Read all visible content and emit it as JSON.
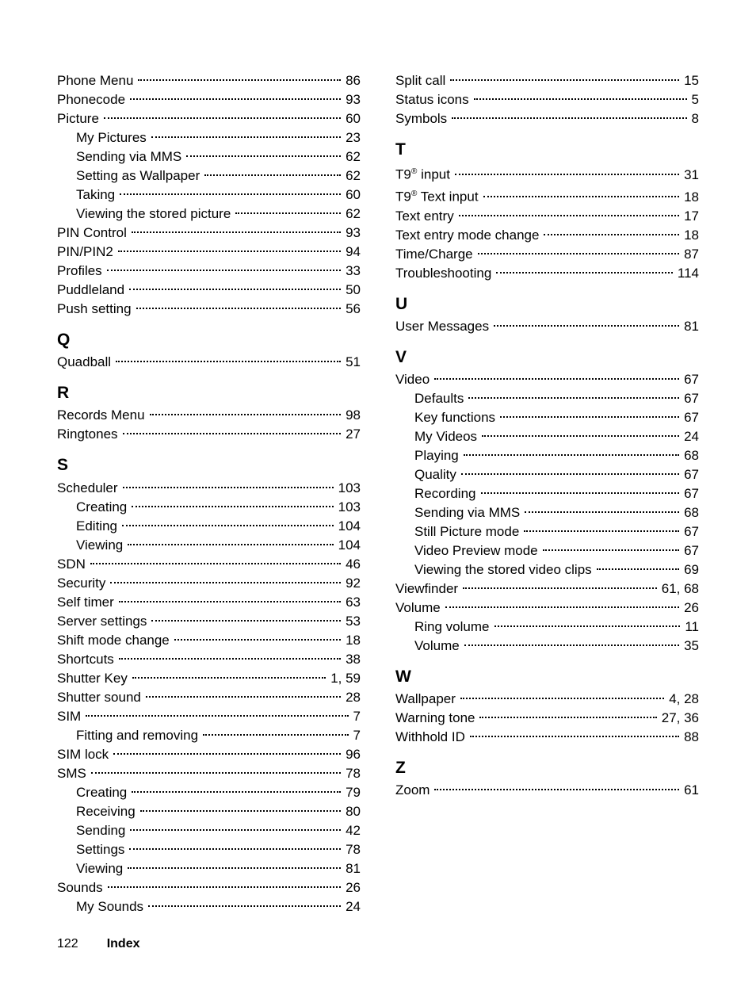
{
  "footer": {
    "pageNumber": "122",
    "sectionTitle": "Index"
  },
  "leftColumn": [
    {
      "type": "entry",
      "label": "Phone Menu",
      "pages": "86"
    },
    {
      "type": "entry",
      "label": "Phonecode",
      "pages": "93"
    },
    {
      "type": "entry",
      "label": "Picture",
      "pages": "60"
    },
    {
      "type": "entry",
      "label": "My Pictures",
      "pages": "23",
      "indent": true
    },
    {
      "type": "entry",
      "label": "Sending via MMS",
      "pages": "62",
      "indent": true
    },
    {
      "type": "entry",
      "label": "Setting as Wallpaper",
      "pages": "62",
      "indent": true
    },
    {
      "type": "entry",
      "label": "Taking",
      "pages": "60",
      "indent": true
    },
    {
      "type": "entry",
      "label": "Viewing the stored picture",
      "pages": "62",
      "indent": true
    },
    {
      "type": "entry",
      "label": "PIN Control",
      "pages": "93"
    },
    {
      "type": "entry",
      "label": "PIN/PIN2",
      "pages": "94"
    },
    {
      "type": "entry",
      "label": "Profiles",
      "pages": "33"
    },
    {
      "type": "entry",
      "label": "Puddleland",
      "pages": "50"
    },
    {
      "type": "entry",
      "label": "Push setting",
      "pages": "56"
    },
    {
      "type": "letter",
      "text": "Q"
    },
    {
      "type": "entry",
      "label": "Quadball",
      "pages": "51"
    },
    {
      "type": "letter",
      "text": "R"
    },
    {
      "type": "entry",
      "label": "Records Menu",
      "pages": "98"
    },
    {
      "type": "entry",
      "label": "Ringtones",
      "pages": "27"
    },
    {
      "type": "letter",
      "text": "S"
    },
    {
      "type": "entry",
      "label": "Scheduler",
      "pages": "103"
    },
    {
      "type": "entry",
      "label": "Creating",
      "pages": "103",
      "indent": true
    },
    {
      "type": "entry",
      "label": "Editing",
      "pages": "104",
      "indent": true
    },
    {
      "type": "entry",
      "label": "Viewing",
      "pages": "104",
      "indent": true
    },
    {
      "type": "entry",
      "label": "SDN",
      "pages": "46"
    },
    {
      "type": "entry",
      "label": "Security",
      "pages": "92"
    },
    {
      "type": "entry",
      "label": "Self timer",
      "pages": "63"
    },
    {
      "type": "entry",
      "label": "Server settings",
      "pages": "53"
    },
    {
      "type": "entry",
      "label": "Shift mode change",
      "pages": "18"
    },
    {
      "type": "entry",
      "label": "Shortcuts",
      "pages": "38"
    },
    {
      "type": "entry",
      "label": "Shutter Key",
      "pages": "1, 59"
    },
    {
      "type": "entry",
      "label": "Shutter sound",
      "pages": "28"
    },
    {
      "type": "entry",
      "label": "SIM",
      "pages": "7"
    },
    {
      "type": "entry",
      "label": "Fitting and removing",
      "pages": "7",
      "indent": true
    },
    {
      "type": "entry",
      "label": "SIM lock",
      "pages": "96"
    },
    {
      "type": "entry",
      "label": "SMS",
      "pages": "78"
    },
    {
      "type": "entry",
      "label": "Creating",
      "pages": "79",
      "indent": true
    },
    {
      "type": "entry",
      "label": "Receiving",
      "pages": "80",
      "indent": true
    },
    {
      "type": "entry",
      "label": "Sending",
      "pages": "42",
      "indent": true
    },
    {
      "type": "entry",
      "label": "Settings",
      "pages": "78",
      "indent": true
    },
    {
      "type": "entry",
      "label": "Viewing",
      "pages": "81",
      "indent": true
    },
    {
      "type": "entry",
      "label": "Sounds",
      "pages": "26"
    },
    {
      "type": "entry",
      "label": "My Sounds",
      "pages": "24",
      "indent": true
    }
  ],
  "rightColumn": [
    {
      "type": "entry",
      "label": "Split call",
      "pages": "15"
    },
    {
      "type": "entry",
      "label": "Status icons",
      "pages": "5"
    },
    {
      "type": "entry",
      "label": "Symbols",
      "pages": "8"
    },
    {
      "type": "letter",
      "text": "T"
    },
    {
      "type": "entry",
      "labelHtml": "T9<sup>®</sup> input",
      "pages": "31"
    },
    {
      "type": "entry",
      "labelHtml": "T9<sup>®</sup> Text input",
      "pages": "18"
    },
    {
      "type": "entry",
      "label": "Text entry",
      "pages": "17"
    },
    {
      "type": "entry",
      "label": "Text entry mode change",
      "pages": "18"
    },
    {
      "type": "entry",
      "label": "Time/Charge",
      "pages": "87"
    },
    {
      "type": "entry",
      "label": "Troubleshooting",
      "pages": "114"
    },
    {
      "type": "letter",
      "text": "U"
    },
    {
      "type": "entry",
      "label": "User Messages",
      "pages": "81"
    },
    {
      "type": "letter",
      "text": "V"
    },
    {
      "type": "entry",
      "label": "Video",
      "pages": "67"
    },
    {
      "type": "entry",
      "label": "Defaults",
      "pages": "67",
      "indent": true
    },
    {
      "type": "entry",
      "label": "Key functions",
      "pages": "67",
      "indent": true
    },
    {
      "type": "entry",
      "label": "My Videos",
      "pages": "24",
      "indent": true
    },
    {
      "type": "entry",
      "label": "Playing",
      "pages": "68",
      "indent": true
    },
    {
      "type": "entry",
      "label": "Quality",
      "pages": "67",
      "indent": true
    },
    {
      "type": "entry",
      "label": "Recording",
      "pages": "67",
      "indent": true
    },
    {
      "type": "entry",
      "label": "Sending via MMS",
      "pages": "68",
      "indent": true
    },
    {
      "type": "entry",
      "label": "Still Picture mode",
      "pages": "67",
      "indent": true
    },
    {
      "type": "entry",
      "label": "Video Preview mode",
      "pages": "67",
      "indent": true
    },
    {
      "type": "entry",
      "label": "Viewing the stored video clips",
      "pages": "69",
      "indent": true
    },
    {
      "type": "entry",
      "label": "Viewfinder",
      "pages": "61, 68"
    },
    {
      "type": "entry",
      "label": "Volume",
      "pages": "26"
    },
    {
      "type": "entry",
      "label": "Ring volume",
      "pages": "11",
      "indent": true
    },
    {
      "type": "entry",
      "label": "Volume",
      "pages": "35",
      "indent": true
    },
    {
      "type": "letter",
      "text": "W"
    },
    {
      "type": "entry",
      "label": "Wallpaper",
      "pages": "4, 28"
    },
    {
      "type": "entry",
      "label": "Warning tone",
      "pages": "27, 36"
    },
    {
      "type": "entry",
      "label": "Withhold ID",
      "pages": "88"
    },
    {
      "type": "letter",
      "text": "Z"
    },
    {
      "type": "entry",
      "label": "Zoom",
      "pages": "61"
    }
  ]
}
